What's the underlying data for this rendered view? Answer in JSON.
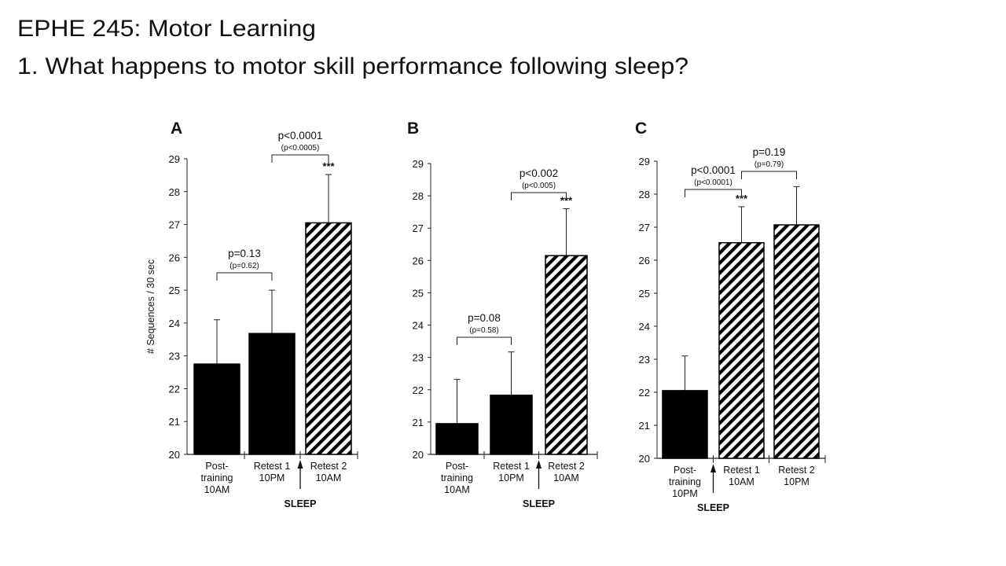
{
  "slide": {
    "heading": "EPHE 245: Motor Learning",
    "question": "1. What happens to motor skill performance following sleep?"
  },
  "colors": {
    "solid_bar": "#000000",
    "hatched_bar_stripe": "#000000",
    "background": "#ffffff"
  },
  "chart_data": [
    {
      "type": "bar",
      "panel": "A",
      "ylabel": "# Sequences / 30 sec",
      "ylim": [
        20,
        29
      ],
      "yticks": [
        "20",
        "21",
        "22",
        "23",
        "24",
        "25",
        "26",
        "27",
        "28",
        "29"
      ],
      "categories": [
        [
          "Post-",
          "training",
          "10AM"
        ],
        [
          "Retest 1",
          "10PM"
        ],
        [
          "Retest 2",
          "10AM"
        ]
      ],
      "values": [
        22.75,
        23.68,
        27.05
      ],
      "error_upper": [
        24.1,
        25.0,
        28.52
      ],
      "fill": [
        "solid",
        "solid",
        "hatched"
      ],
      "sleep_label": "SLEEP",
      "sleep_between": [
        1,
        2
      ],
      "significance": [
        null,
        null,
        "***"
      ],
      "comparisons": [
        {
          "from": 0,
          "to": 1,
          "p": "p=0.13",
          "p_sub": "(p=0.62)"
        },
        {
          "from": 1,
          "to": 2,
          "p": "p<0.0001",
          "p_sub": "(p<0.0005)"
        }
      ]
    },
    {
      "type": "bar",
      "panel": "B",
      "ylabel": "",
      "ylim": [
        20,
        29
      ],
      "yticks": [
        "20",
        "21",
        "22",
        "23",
        "24",
        "25",
        "26",
        "27",
        "28",
        "29"
      ],
      "categories": [
        [
          "Post-",
          "training",
          "10AM"
        ],
        [
          "Retest 1",
          "10PM"
        ],
        [
          "Retest 2",
          "10AM"
        ]
      ],
      "values": [
        20.95,
        21.83,
        26.15
      ],
      "error_upper": [
        22.32,
        23.17,
        27.6
      ],
      "fill": [
        "solid",
        "solid",
        "hatched"
      ],
      "sleep_label": "SLEEP",
      "sleep_between": [
        1,
        2
      ],
      "significance": [
        null,
        null,
        "***"
      ],
      "comparisons": [
        {
          "from": 0,
          "to": 1,
          "p": "p=0.08",
          "p_sub": "(p=0.58)"
        },
        {
          "from": 1,
          "to": 2,
          "p": "p<0.002",
          "p_sub": "(p<0.005)"
        }
      ]
    },
    {
      "type": "bar",
      "panel": "C",
      "ylabel": "",
      "ylim": [
        20,
        29
      ],
      "yticks": [
        "20",
        "21",
        "22",
        "23",
        "24",
        "25",
        "26",
        "27",
        "28",
        "29"
      ],
      "categories": [
        [
          "Post-",
          "training",
          "10PM"
        ],
        [
          "Retest 1",
          "10AM"
        ],
        [
          "Retest 2",
          "10PM"
        ]
      ],
      "values": [
        22.05,
        26.53,
        27.07
      ],
      "error_upper": [
        23.1,
        27.62,
        28.23
      ],
      "fill": [
        "solid",
        "hatched",
        "hatched"
      ],
      "sleep_label": "SLEEP",
      "sleep_between": [
        0,
        1
      ],
      "significance": [
        null,
        "***",
        null
      ],
      "comparisons": [
        {
          "from": 0,
          "to": 1,
          "p": "p<0.0001",
          "p_sub": "(p<0.0001)"
        },
        {
          "from": 1,
          "to": 2,
          "p": "p=0.19",
          "p_sub": "(p=0.79)"
        }
      ]
    }
  ]
}
